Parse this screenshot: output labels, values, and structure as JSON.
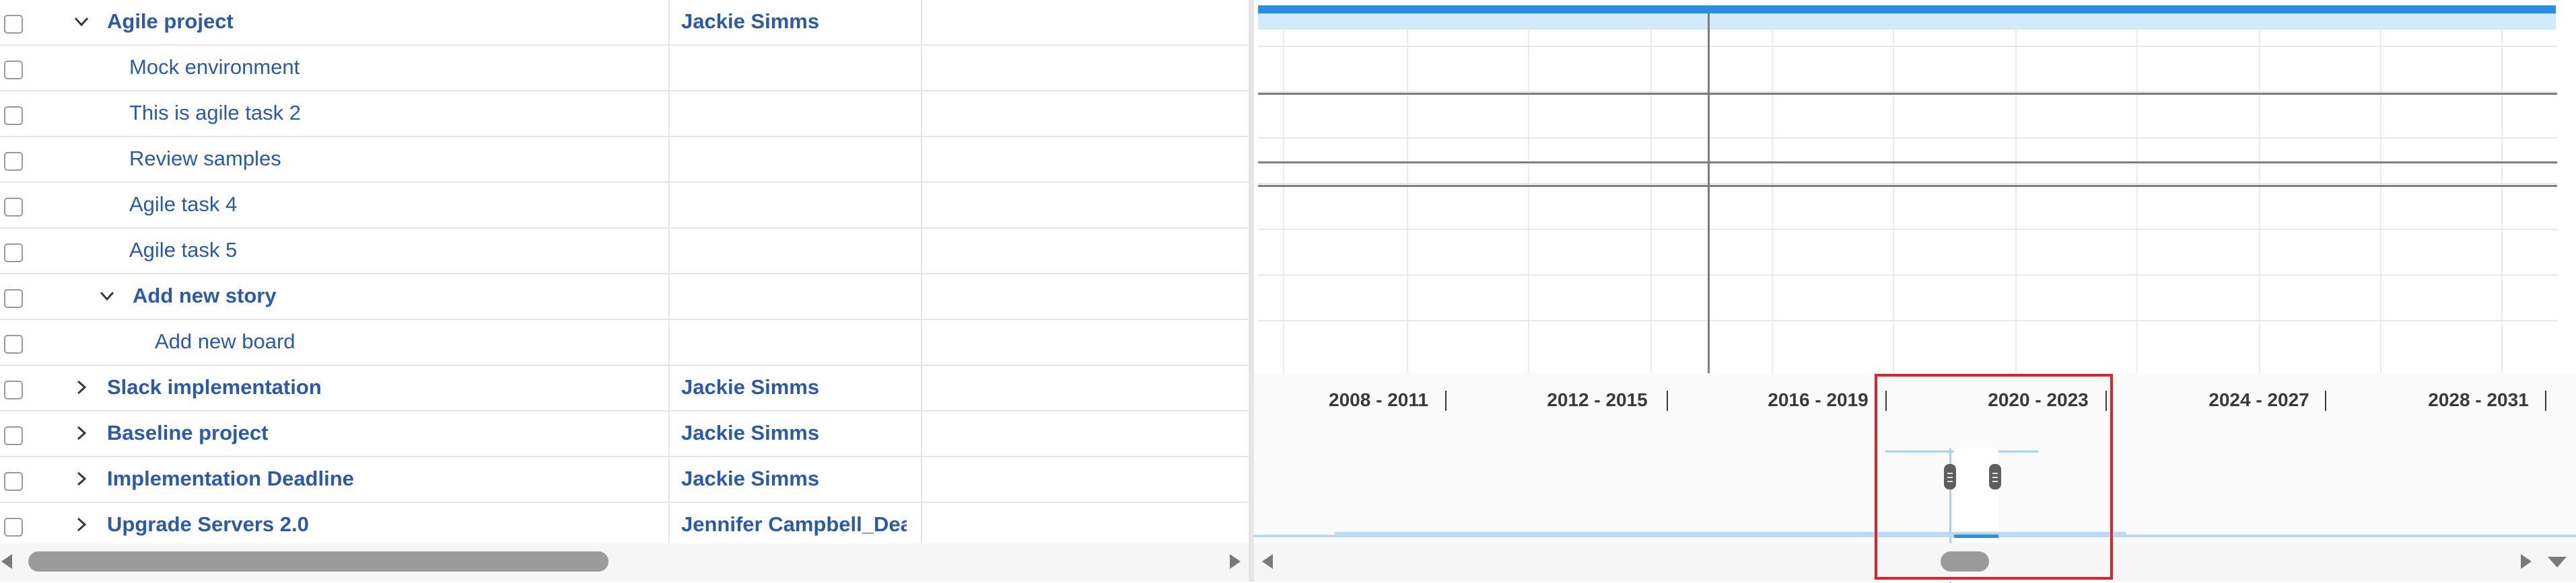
{
  "tasks": [
    {
      "name": "Agile project",
      "owner": "Jackie Simms"
    },
    {
      "name": "Mock environment",
      "owner": ""
    },
    {
      "name": "This is agile task 2",
      "owner": ""
    },
    {
      "name": "Review samples",
      "owner": ""
    },
    {
      "name": "Agile task 4",
      "owner": ""
    },
    {
      "name": "Agile task 5",
      "owner": ""
    },
    {
      "name": "Add new story",
      "owner": ""
    },
    {
      "name": "Add new board",
      "owner": ""
    },
    {
      "name": "Slack implementation",
      "owner": "Jackie Simms"
    },
    {
      "name": "Baseline project",
      "owner": "Jackie Simms"
    },
    {
      "name": "Implementation Deadline",
      "owner": "Jackie Simms"
    },
    {
      "name": "Upgrade Servers 2.0",
      "owner": "Jennifer Campbell_Dead"
    }
  ],
  "overview": {
    "periods": [
      "2008 - 2011",
      "2012 - 2015",
      "2016 - 2019",
      "2020 - 2023",
      "2024 - 2027",
      "2028 - 2031"
    ]
  },
  "icons": {
    "expanded": "chevron-down-icon",
    "collapsed": "chevron-right-icon",
    "scroll_left": "triangle-left-icon",
    "scroll_right": "triangle-right-icon",
    "scroll_down": "triangle-down-icon"
  },
  "colors": {
    "link": "#2a5aa8",
    "bar": "#2b8ee3",
    "bar_bg": "#d3eafb",
    "highlight": "#e0202a"
  }
}
